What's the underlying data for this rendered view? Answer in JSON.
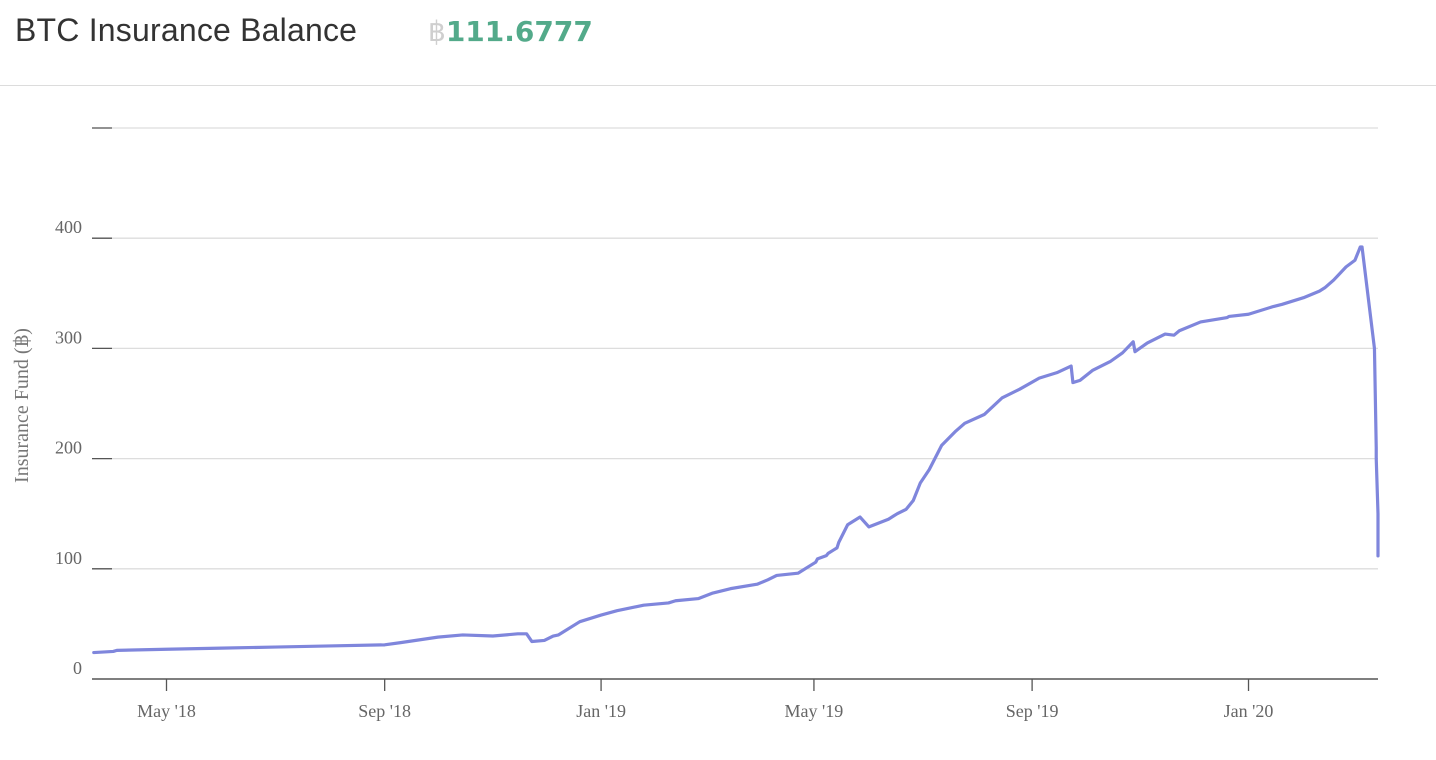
{
  "header": {
    "title": "BTC Insurance Balance",
    "balance_symbol": "฿",
    "balance_value": "111.6777"
  },
  "colors": {
    "line": "#7f86dc",
    "grid": "#dddddd",
    "axis": "#555555",
    "balance_value": "#53aa8a",
    "balance_symbol": "#cfcfcf"
  },
  "chart_data": {
    "type": "line",
    "title": "",
    "xlabel": "",
    "ylabel": "Insurance Fund (฿)",
    "ylim": [
      0,
      500
    ],
    "yticks": [
      0,
      100,
      200,
      300,
      400
    ],
    "xlim": [
      "2018-03-20",
      "2020-03-14"
    ],
    "xticks": [
      {
        "date": "2018-05-01",
        "label": "May '18"
      },
      {
        "date": "2018-09-01",
        "label": "Sep '18"
      },
      {
        "date": "2019-01-01",
        "label": "Jan '19"
      },
      {
        "date": "2019-05-01",
        "label": "May '19"
      },
      {
        "date": "2019-09-01",
        "label": "Sep '19"
      },
      {
        "date": "2020-01-01",
        "label": "Jan '20"
      }
    ],
    "grid": true,
    "legend": "none",
    "series": [
      {
        "x": [
          "2018-03-21",
          "2018-04-01",
          "2018-04-03",
          "2018-05-01",
          "2018-06-01",
          "2018-07-01",
          "2018-08-01",
          "2018-09-01",
          "2018-09-10",
          "2018-10-01",
          "2018-10-15",
          "2018-11-01",
          "2018-11-15",
          "2018-11-20",
          "2018-11-23",
          "2018-11-30",
          "2018-12-05",
          "2018-12-08",
          "2018-12-20",
          "2019-01-01",
          "2019-01-10",
          "2019-01-25",
          "2019-02-08",
          "2019-02-12",
          "2019-02-25",
          "2019-03-05",
          "2019-03-15",
          "2019-03-30",
          "2019-04-05",
          "2019-04-10",
          "2019-04-22",
          "2019-05-02",
          "2019-05-03",
          "2019-05-08",
          "2019-05-09",
          "2019-05-12",
          "2019-05-14",
          "2019-05-15",
          "2019-05-20",
          "2019-05-27",
          "2019-06-01",
          "2019-06-12",
          "2019-06-15",
          "2019-06-17",
          "2019-06-22",
          "2019-06-26",
          "2019-06-30",
          "2019-07-05",
          "2019-07-12",
          "2019-07-20",
          "2019-07-25",
          "2019-08-05",
          "2019-08-15",
          "2019-08-25",
          "2019-09-05",
          "2019-09-15",
          "2019-09-23",
          "2019-09-24",
          "2019-09-28",
          "2019-10-05",
          "2019-10-15",
          "2019-10-22",
          "2019-10-28",
          "2019-10-29",
          "2019-11-05",
          "2019-11-15",
          "2019-11-20",
          "2019-11-23",
          "2019-12-05",
          "2019-12-20",
          "2019-12-21",
          "2020-01-01",
          "2020-01-15",
          "2020-01-20",
          "2020-02-01",
          "2020-02-10",
          "2020-02-13",
          "2020-02-18",
          "2020-02-25",
          "2020-03-01",
          "2020-03-03",
          "2020-03-04",
          "2020-03-05",
          "2020-03-12",
          "2020-03-13",
          "2020-03-13",
          "2020-03-14",
          "2020-03-14",
          "2020-03-14"
        ],
        "y": [
          24,
          25,
          26,
          27,
          28,
          29,
          30,
          31,
          33,
          38,
          40,
          39,
          41,
          41,
          34,
          35,
          39,
          40,
          52,
          58,
          62,
          67,
          69,
          71,
          73,
          78,
          82,
          86,
          90,
          94,
          96,
          106,
          109,
          112,
          114,
          117,
          119,
          124,
          140,
          147,
          138,
          145,
          148,
          150,
          154,
          162,
          178,
          190,
          212,
          225,
          232,
          240,
          255,
          263,
          273,
          278,
          284,
          269,
          271,
          280,
          288,
          296,
          306,
          297,
          305,
          313,
          312,
          316,
          324,
          328,
          329,
          331,
          338,
          340,
          346,
          352,
          355,
          362,
          374,
          380,
          388,
          392,
          392,
          300,
          210,
          200,
          150,
          120,
          111.6777
        ]
      }
    ]
  }
}
